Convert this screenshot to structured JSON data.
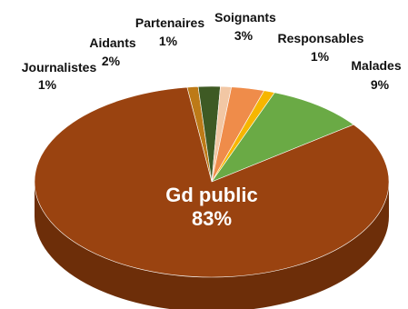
{
  "chart_data": {
    "type": "pie",
    "style": "3d",
    "slices": [
      {
        "name": "Gd public",
        "label": "Gd public",
        "value": 83,
        "value_label": "83%",
        "color": "#9a4310",
        "side_color": "#6d2e09"
      },
      {
        "name": "Journalistes",
        "label": "Journalistes",
        "value": 1,
        "value_label": "1%",
        "color": "#bd7a17",
        "side_color": "#8a5510"
      },
      {
        "name": "Aidants",
        "label": "Aidants",
        "value": 2,
        "value_label": "2%",
        "color": "#3e5a24",
        "side_color": "#2a3f18"
      },
      {
        "name": "Partenaires",
        "label": "Partenaires",
        "value": 1,
        "value_label": "1%",
        "color": "#f2c7a4",
        "side_color": "#c99c7a"
      },
      {
        "name": "Soignants",
        "label": "Soignants",
        "value": 3,
        "value_label": "3%",
        "color": "#ef8c4a",
        "side_color": "#c0672c"
      },
      {
        "name": "Responsables",
        "label": "Responsables",
        "value": 1,
        "value_label": "1%",
        "color": "#f6b600",
        "side_color": "#c08c00"
      },
      {
        "name": "Malades",
        "label": "Malades",
        "value": 9,
        "value_label": "9%",
        "color": "#6aaa45",
        "side_color": "#4a7d2e"
      }
    ]
  }
}
